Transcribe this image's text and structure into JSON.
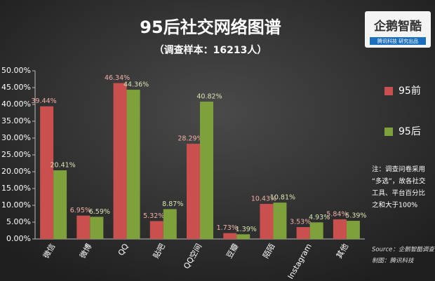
{
  "chart_data": {
    "type": "bar",
    "title": "95后社交网络图谱",
    "subtitle": "（调查样本：16213人）",
    "logo": {
      "name": "企鹅智酷",
      "tagline": "腾讯科技  研究出品"
    },
    "categories": [
      "微信",
      "微博",
      "QQ",
      "贴吧",
      "QQ空间",
      "豆瓣",
      "陌陌",
      "Instagram",
      "其他"
    ],
    "series": [
      {
        "name": "95前",
        "color": "#c9504f",
        "label_color": "#f0b0a8",
        "values": [
          39.44,
          6.95,
          46.34,
          5.32,
          28.29,
          1.73,
          10.43,
          3.53,
          5.84
        ],
        "value_labels": [
          "39.44%",
          "6.95%",
          "46.34%",
          "5.32%",
          "28.29%",
          "1.73%",
          "10.43%",
          "3.53%",
          "5.84%"
        ]
      },
      {
        "name": "95后",
        "color": "#7fa13c",
        "label_color": "#d6e6b0",
        "values": [
          20.41,
          6.59,
          44.36,
          8.87,
          40.82,
          1.39,
          10.81,
          4.93,
          5.39
        ],
        "value_labels": [
          "20.41%",
          "6.59%",
          "44.36%",
          "8.87%",
          "40.82%",
          "1.39%",
          "10.81%",
          "4.93%",
          "5.39%"
        ]
      }
    ],
    "ylim": [
      0,
      50
    ],
    "yticks": [
      {
        "value": 0,
        "label": "0.00%"
      },
      {
        "value": 5,
        "label": "5.00%"
      },
      {
        "value": 10,
        "label": "10.00%"
      },
      {
        "value": 15,
        "label": "15.00%"
      },
      {
        "value": 20,
        "label": "20.00%"
      },
      {
        "value": 25,
        "label": "25.00%"
      },
      {
        "value": 30,
        "label": "30.00%"
      },
      {
        "value": 35,
        "label": "35.00%"
      },
      {
        "value": 40,
        "label": "40.00%"
      },
      {
        "value": 45,
        "label": "45.00%"
      },
      {
        "value": 50,
        "label": "50.00%"
      }
    ],
    "grid": false,
    "note": [
      "注：调查问卷采用",
      "“多选”，故各社交",
      "工具、平台百分比",
      "之和大于100%"
    ],
    "source": [
      "Source：企鹅智酷调查",
      "制图：腾讯科技"
    ]
  }
}
